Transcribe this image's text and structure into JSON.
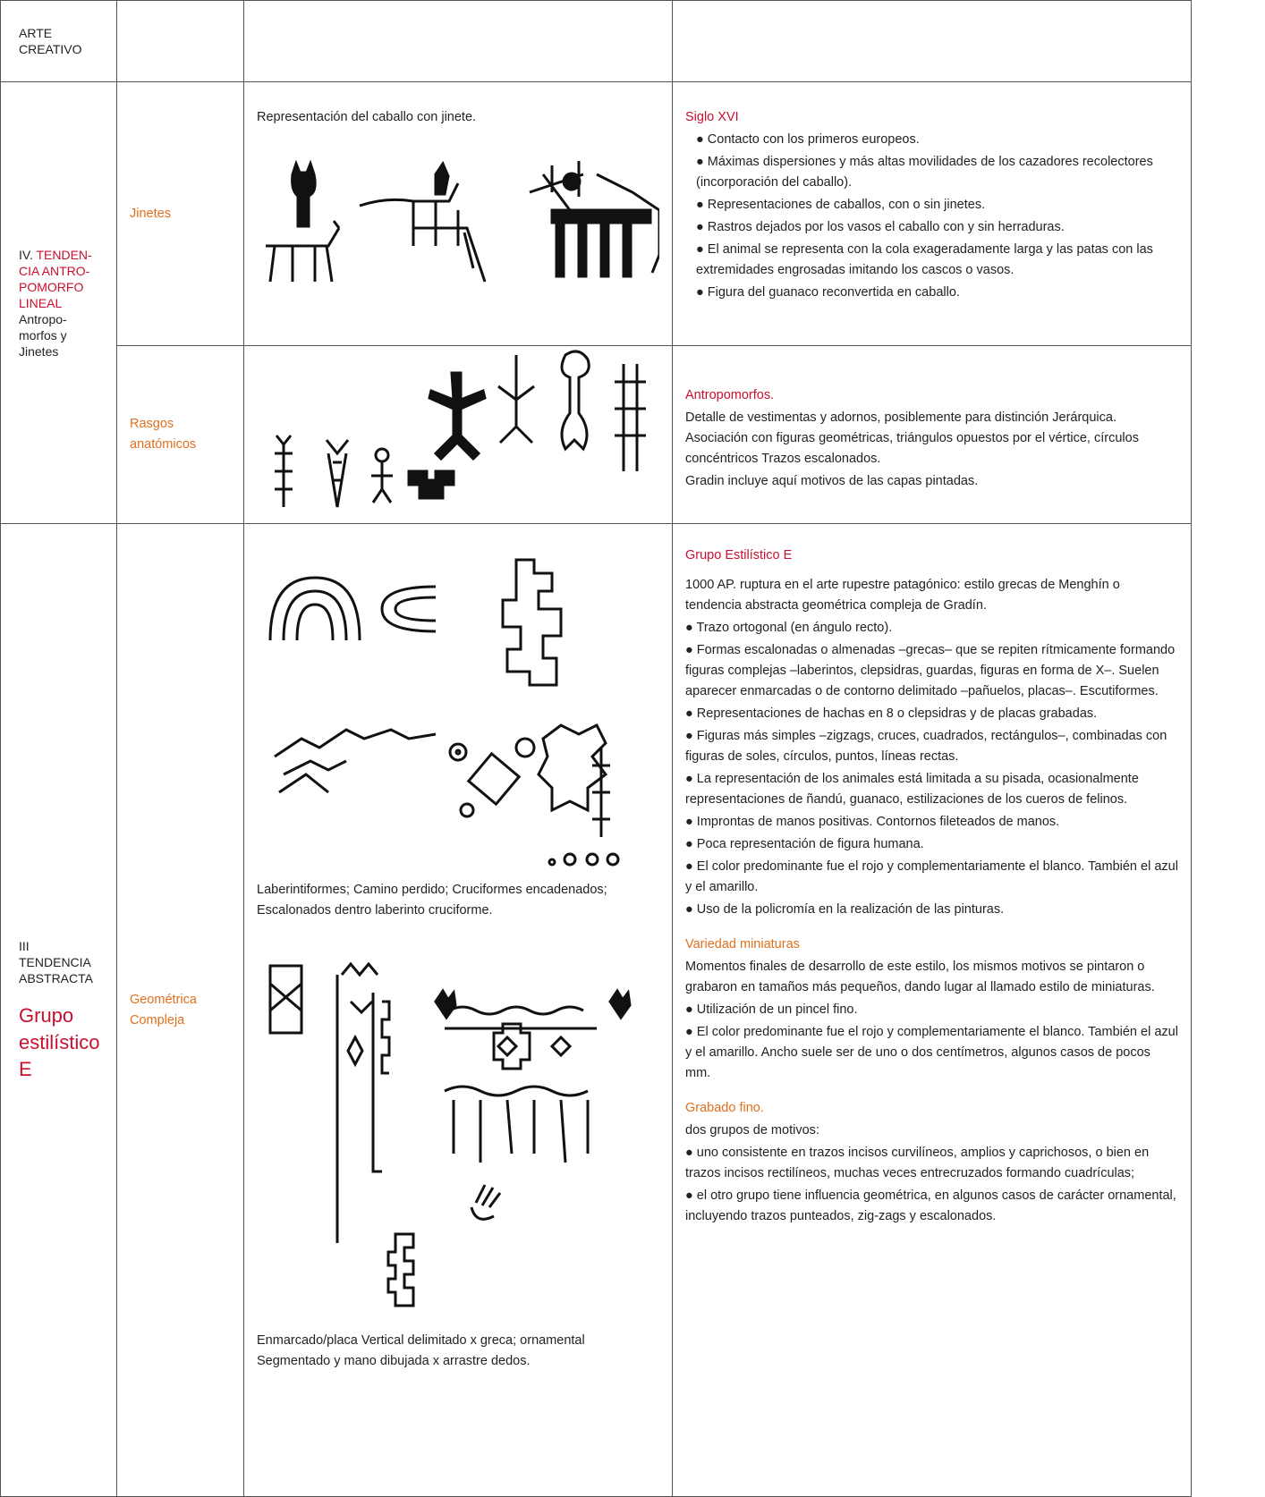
{
  "table": {
    "header": {
      "lines": [
        "ARTE",
        "CREATIVO"
      ]
    },
    "tendencia_iv": {
      "prefix": "IV.",
      "title_lines": [
        "TENDEN-",
        "CIA ANTRO-",
        "POMORFO",
        "LINEAL"
      ],
      "subtitle_lines": [
        "Antropo-",
        "morfos y",
        "Jinetes"
      ],
      "jinetes": {
        "label": "Jinetes",
        "caption": "Representación del caballo con jinete.",
        "heading": "Siglo XVI",
        "items": [
          "● Contacto con los primeros europeos.",
          "● Máximas dispersiones y más altas movilidades de los cazadores recolectores (incorporación del caballo).",
          "● Representaciones de caballos, con o sin jinetes.",
          "● Rastros dejados por los vasos el caballo con y sin herraduras.",
          "● El animal se representa con la cola exageradamente larga y las patas con las extremidades engrosadas imitando los cascos o vasos.",
          "● Figura del guanaco reconvertida en caballo."
        ]
      },
      "rasgos": {
        "label_lines": [
          "Rasgos",
          "anatómicos"
        ],
        "heading": "Antropomorfos.",
        "items": [
          "Detalle de vestimentas y adornos, posiblemente para distinción Jerárquica. Asociación con figuras geométricas, triángulos opuestos por el vértice, círculos concéntricos Trazos escalonados.",
          "Gradin incluye aquí motivos de las capas pintadas."
        ]
      }
    },
    "tendencia_iii": {
      "lines": [
        "III",
        "TENDENCIA",
        "ABSTRACTA"
      ],
      "group_lines": [
        "Grupo",
        "estilístico",
        "E"
      ],
      "label_lines": [
        "Geométrica",
        "Compleja"
      ],
      "caption_1": "Laberintiformes; Camino perdido; Cruciformes encadenados; Escalonados dentro laberinto cruciforme.",
      "caption_2": "Enmarcado/placa Vertical delimitado x greca; ornamental Segmentado y mano dibujada x arrastre dedos.",
      "grupo": {
        "heading": "Grupo Estilístico E",
        "items": [
          "1000 AP. ruptura en el arte rupestre patagónico: estilo grecas de Menghín o tendencia abstracta geométrica compleja de Gradín.",
          "● Trazo ortogonal (en ángulo recto).",
          "● Formas escalonadas o almenadas –grecas– que se repiten rítmicamente formando figuras complejas –laberintos, clepsidras, guardas, figuras en forma de X–. Suelen aparecer enmarcadas o de contorno delimitado –pañuelos, placas–. Escutiformes.",
          "● Representaciones de hachas en 8 o clepsidras y de placas grabadas.",
          "● Figuras más simples –zigzags, cruces, cuadrados, rectángulos–, combinadas con figuras de soles, círculos, puntos, líneas rectas.",
          "● La representación de los animales está limitada a su pisada, ocasionalmente representaciones de ñandú, guanaco, estilizaciones de los cueros de felinos.",
          "● Improntas de manos positivas. Contornos fileteados de manos.",
          "● Poca representación de figura humana.",
          "● El color predominante fue el rojo y complementariamente el blanco. También el azul y el amarillo.",
          "● Uso de la policromía en la realización de las pinturas."
        ]
      },
      "miniaturas": {
        "heading": "Variedad miniaturas",
        "items": [
          "Momentos finales de desarrollo de este estilo, los mismos motivos se pintaron o grabaron en tamaños más pequeños, dando lugar al llamado estilo de miniaturas.",
          "● Utilización de un pincel fino.",
          "● El color predominante fue el rojo y complementariamente el blanco. También el azul y el amarillo. Ancho suele ser de uno o dos centímetros, algunos casos de pocos mm."
        ]
      },
      "grabado": {
        "heading": "Grabado fino.",
        "items": [
          "dos grupos de motivos:",
          "● uno consistente en trazos incisos curvilíneos, amplios y caprichosos, o bien en trazos incisos rectilíneos, muchas veces entrecruzados formando cuadrículas;",
          "● el otro grupo tiene influencia geométrica, en algunos casos de carácter ornamental, incluyendo trazos punteados, zig-zags y escalonados."
        ]
      }
    }
  }
}
